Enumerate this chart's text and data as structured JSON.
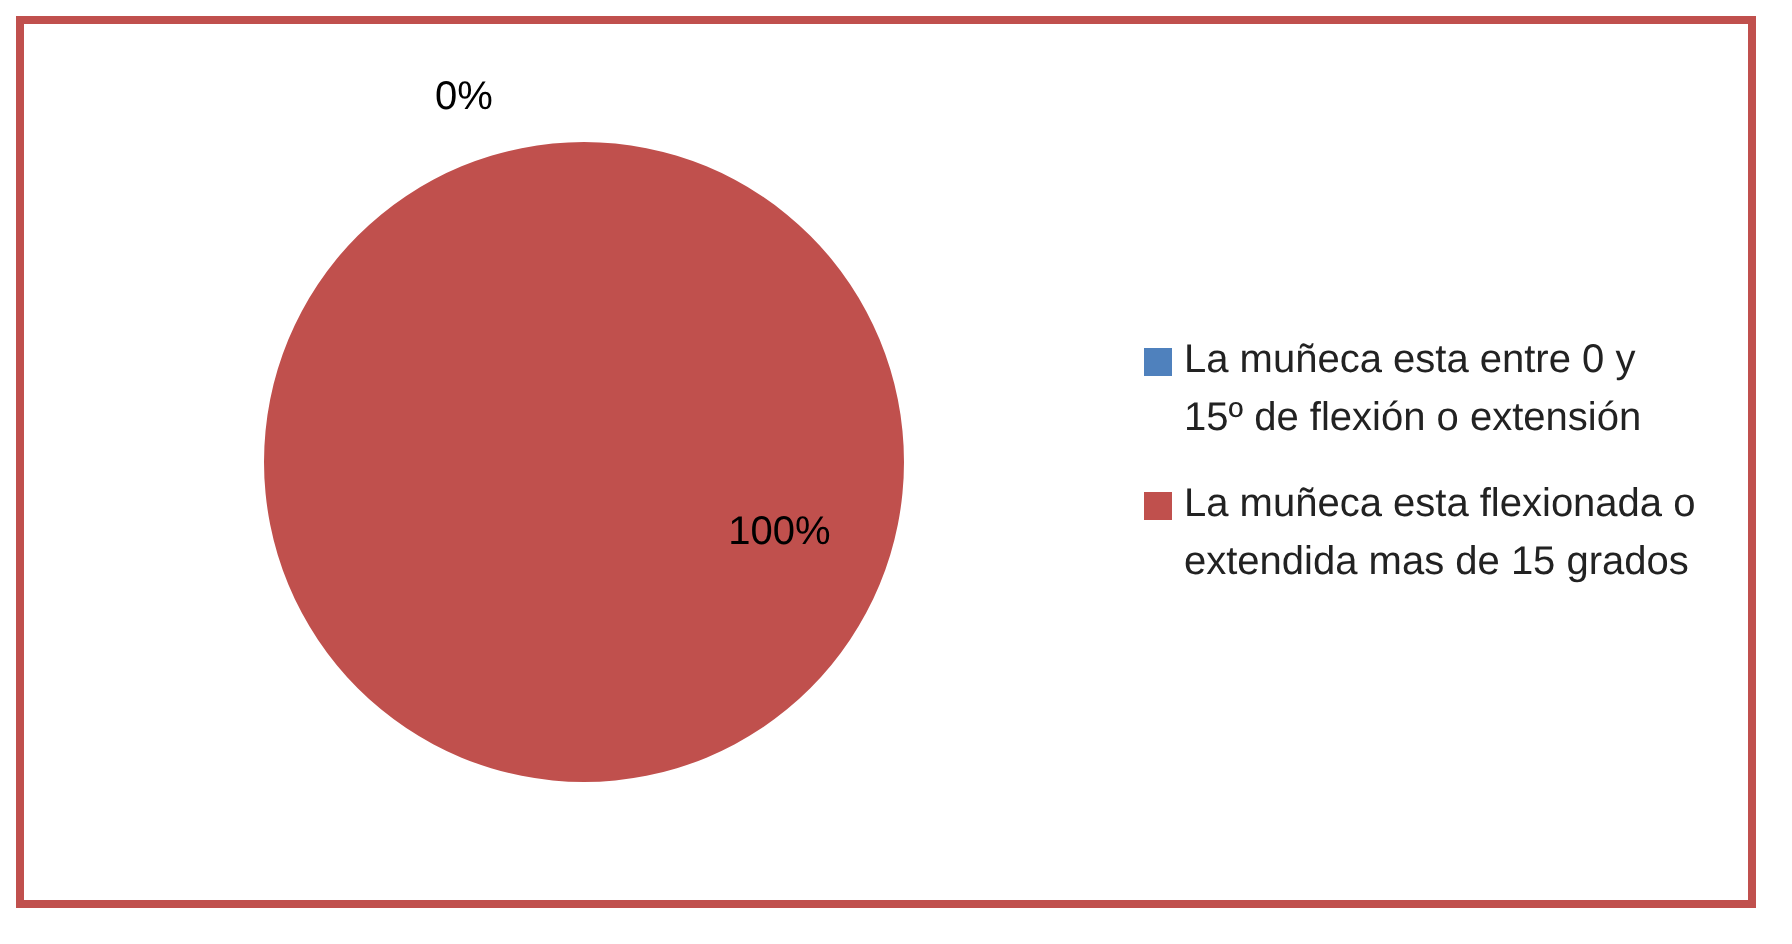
{
  "chart_data": {
    "type": "pie",
    "categories": [
      "La muñeca esta entre 0 y 15º de flexión o extensión",
      "La muñeca esta flexionada o extendida mas de 15 grados"
    ],
    "values": [
      0,
      100
    ],
    "colors": [
      "#4f81bd",
      "#c0504d"
    ],
    "value_labels": [
      "0%",
      "100%"
    ],
    "legend": "right"
  }
}
